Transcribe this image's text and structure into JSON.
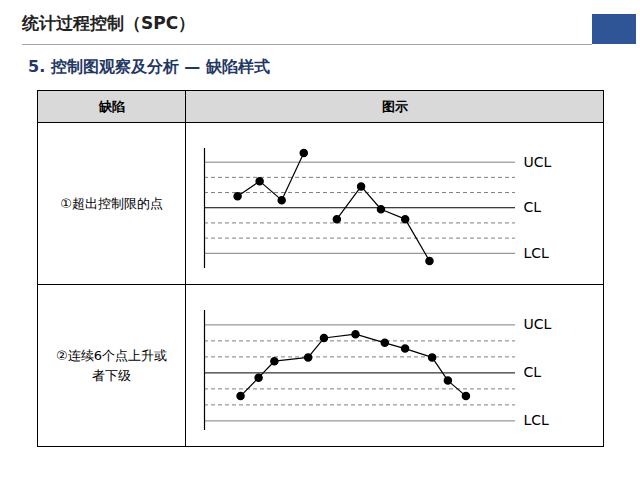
{
  "header": {
    "title": "统计过程控制（SPC）",
    "subtitle": "5. 控制图观察及分析 — 缺陷样式"
  },
  "table": {
    "columns": [
      "缺陷",
      "图示"
    ]
  },
  "chart_data": [
    {
      "type": "line",
      "title": "①超出控制限的点",
      "x": [
        1,
        2,
        3,
        4,
        4.7,
        5.5,
        6.6,
        7.5,
        8.6,
        9.7
      ],
      "values": [
        0.75,
        1.75,
        0.5,
        3.6,
        null,
        -0.75,
        1.4,
        -0.1,
        -0.75,
        -3.5
      ],
      "color": "#000000",
      "marker": "circle",
      "xlim": [
        -0.5,
        13.6
      ],
      "ylim": [
        -4,
        3.9
      ],
      "control_limits": [
        {
          "label": "UCL",
          "value": 3,
          "line_style": "dashed"
        },
        {
          "label": "CL",
          "value": 0,
          "line_style": "solid"
        },
        {
          "label": "LCL",
          "value": -3,
          "line_style": "dashed"
        }
      ],
      "zone_lines": [
        -2,
        -1,
        1,
        2
      ],
      "tick_labels": false
    },
    {
      "type": "line",
      "title": "②连续6个点上升或者下级",
      "x": [
        1,
        1.8,
        2.5,
        4,
        4.7,
        6.1,
        7.4,
        8.3,
        9.5,
        10.2,
        11
      ],
      "values": [
        -1.45,
        -0.3,
        0.73,
        0.97,
        2.18,
        2.42,
        1.88,
        1.52,
        0.97,
        -0.48,
        -1.45
      ],
      "color": "#000000",
      "marker": "circle",
      "xlim": [
        -0.6,
        13.2
      ],
      "ylim": [
        -3.6,
        3.9
      ],
      "control_limits": [
        {
          "label": "UCL",
          "value": 3,
          "line_style": "dashed"
        },
        {
          "label": "CL",
          "value": 0,
          "line_style": "solid"
        },
        {
          "label": "LCL",
          "value": -3,
          "line_style": "dashed"
        }
      ],
      "zone_lines": [
        -2,
        -1,
        1,
        2
      ],
      "tick_labels": false
    }
  ]
}
